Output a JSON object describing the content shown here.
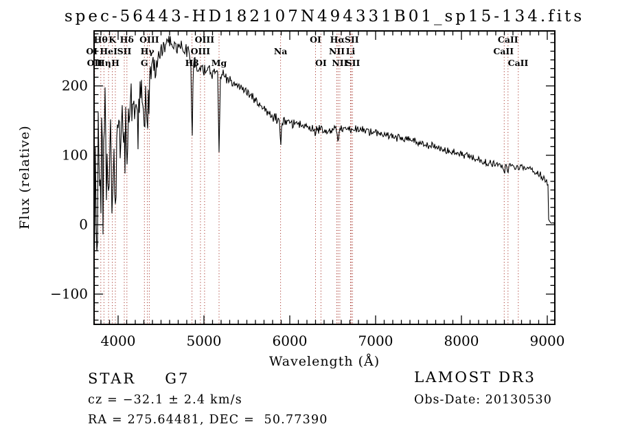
{
  "title": "spec-56443-HD182107N494331B01_sp15-134.fits",
  "colors": {
    "background": "#ffffff",
    "spectrum": "#000000",
    "marker": "#a8372d",
    "text": "#000000"
  },
  "chart_data": {
    "type": "line",
    "title": "spec-56443-HD182107N494331B01_sp15-134.fits",
    "xlabel": "Wavelength (Å)",
    "ylabel": "Flux (relative)",
    "xlim": [
      3720,
      9088
    ],
    "ylim": [
      -143.6,
      279.2
    ],
    "xticks": [
      4000,
      5000,
      6000,
      7000,
      8000,
      9000
    ],
    "yticks": [
      -100,
      0,
      100,
      200
    ],
    "x_minor_step": 100,
    "y_minor_step": 12.5,
    "grid": false,
    "noise_seed": 20130530,
    "continuum": [
      [
        3700,
        95,
        115
      ],
      [
        3760,
        90,
        105
      ],
      [
        3820,
        115,
        95
      ],
      [
        3880,
        105,
        85
      ],
      [
        3940,
        95,
        75
      ],
      [
        4000,
        145,
        62
      ],
      [
        4060,
        140,
        55
      ],
      [
        4120,
        155,
        50
      ],
      [
        4180,
        175,
        42
      ],
      [
        4240,
        185,
        38
      ],
      [
        4300,
        180,
        36
      ],
      [
        4360,
        195,
        32
      ],
      [
        4420,
        228,
        26
      ],
      [
        4480,
        248,
        20
      ],
      [
        4560,
        260,
        17
      ],
      [
        4650,
        262,
        15
      ],
      [
        4750,
        256,
        14
      ],
      [
        4850,
        240,
        13
      ],
      [
        4950,
        226,
        12
      ],
      [
        5050,
        221,
        12
      ],
      [
        5150,
        221,
        11
      ],
      [
        5250,
        212,
        11
      ],
      [
        5400,
        200,
        10
      ],
      [
        5550,
        186,
        10
      ],
      [
        5700,
        165,
        9
      ],
      [
        5850,
        154,
        9
      ],
      [
        6000,
        148,
        8
      ],
      [
        6150,
        143,
        8
      ],
      [
        6300,
        138,
        8
      ],
      [
        6450,
        136,
        7
      ],
      [
        6600,
        139,
        7
      ],
      [
        6750,
        138,
        7
      ],
      [
        6900,
        134,
        7
      ],
      [
        7050,
        131,
        7
      ],
      [
        7200,
        128,
        7
      ],
      [
        7350,
        124,
        7
      ],
      [
        7500,
        119,
        7
      ],
      [
        7650,
        114,
        7
      ],
      [
        7800,
        108,
        7
      ],
      [
        7950,
        103,
        7
      ],
      [
        8100,
        97,
        6
      ],
      [
        8250,
        91,
        6
      ],
      [
        8400,
        87,
        6
      ],
      [
        8550,
        84,
        6
      ],
      [
        8700,
        84,
        6
      ],
      [
        8800,
        80,
        6
      ],
      [
        8900,
        73,
        7
      ],
      [
        8970,
        66,
        7
      ],
      [
        9000,
        60,
        6
      ],
      [
        9008,
        56,
        4
      ],
      [
        9014,
        8,
        2
      ],
      [
        9040,
        3,
        1
      ],
      [
        9088,
        2,
        1
      ]
    ],
    "absorption_lines": [
      [
        3933,
        70,
        14
      ],
      [
        3968,
        60,
        12
      ],
      [
        4102,
        55,
        10
      ],
      [
        4305,
        30,
        9
      ],
      [
        4341,
        40,
        9
      ],
      [
        4861,
        115,
        7
      ],
      [
        5176,
        92,
        7
      ],
      [
        5893,
        32,
        7
      ],
      [
        6300,
        8,
        5
      ],
      [
        6563,
        32,
        6
      ],
      [
        8498,
        9,
        7
      ],
      [
        8542,
        8,
        7
      ],
      [
        8662,
        6,
        7
      ]
    ],
    "marker_lines": [
      3727,
      3798,
      3835,
      3889,
      3933,
      3968,
      4072,
      4102,
      4306,
      4341,
      4363,
      4861,
      4959,
      5007,
      5176,
      5893,
      6300,
      6363,
      6548,
      6563,
      6583,
      6708,
      6716,
      6731,
      8498,
      8542,
      8662
    ],
    "marker_labels": [
      {
        "label": "Hθ",
        "wavelength": 3798,
        "row": 1
      },
      {
        "label": "K",
        "wavelength": 3933,
        "row": 1
      },
      {
        "label": "Hδ",
        "wavelength": 4102,
        "row": 1
      },
      {
        "label": "OIII",
        "wavelength": 4363,
        "row": 1
      },
      {
        "label": "OIII",
        "wavelength": 5007,
        "row": 1
      },
      {
        "label": "OI",
        "wavelength": 6300,
        "row": 1
      },
      {
        "label": "Hα",
        "wavelength": 6555,
        "row": 1
      },
      {
        "label": "SII",
        "wavelength": 6722,
        "row": 1
      },
      {
        "label": "CaII",
        "wavelength": 8542,
        "row": 1
      },
      {
        "label": "OI",
        "wavelength": 3694,
        "row": 2
      },
      {
        "label": "HeI",
        "wavelength": 3889,
        "row": 2
      },
      {
        "label": "SII",
        "wavelength": 4072,
        "row": 2
      },
      {
        "label": "Hγ",
        "wavelength": 4341,
        "row": 2
      },
      {
        "label": "OIII",
        "wavelength": 4959,
        "row": 2
      },
      {
        "label": "Na",
        "wavelength": 5893,
        "row": 2
      },
      {
        "label": "NII",
        "wavelength": 6548,
        "row": 2
      },
      {
        "label": "Li",
        "wavelength": 6708,
        "row": 2
      },
      {
        "label": "CaII",
        "wavelength": 8490,
        "row": 2
      },
      {
        "label": "OII",
        "wavelength": 3727,
        "row": 3
      },
      {
        "label": "Hη",
        "wavelength": 3835,
        "row": 3
      },
      {
        "label": "H",
        "wavelength": 3968,
        "row": 3
      },
      {
        "label": "G",
        "wavelength": 4306,
        "row": 3
      },
      {
        "label": "Hβ",
        "wavelength": 4861,
        "row": 3
      },
      {
        "label": "Mg",
        "wavelength": 5176,
        "row": 3
      },
      {
        "label": "OI",
        "wavelength": 6363,
        "row": 3
      },
      {
        "label": "NII",
        "wavelength": 6583,
        "row": 3
      },
      {
        "label": "SII",
        "wavelength": 6736,
        "row": 3
      },
      {
        "label": "CaII",
        "wavelength": 8660,
        "row": 3
      }
    ]
  },
  "footer": {
    "left": {
      "object_type": "STAR",
      "subclass": "G7",
      "cz_line": "cz = −32.1 ± 2.4 km/s",
      "radec_line": "RA = 275.64481, DEC =  50.77390"
    },
    "right": {
      "survey": "LAMOST DR3",
      "obs_date_line": "Obs-Date: 20130530"
    }
  }
}
